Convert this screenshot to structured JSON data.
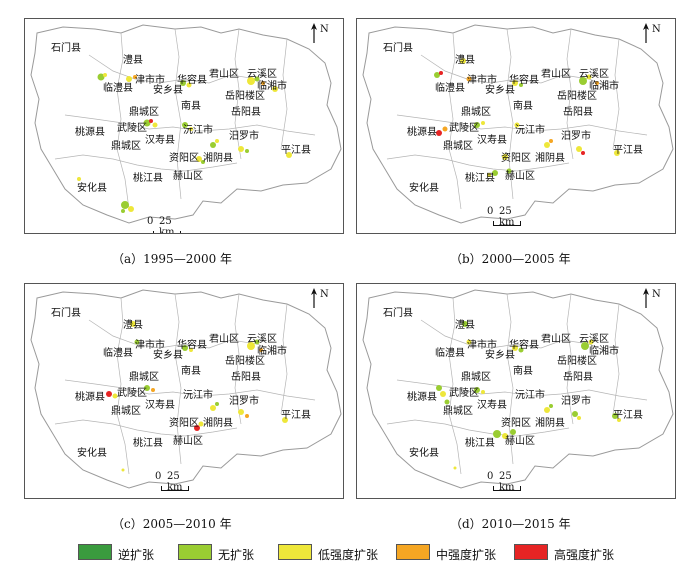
{
  "legend": {
    "items": [
      {
        "label": "逆扩张",
        "color": "#3a9b3e"
      },
      {
        "label": "无扩张",
        "color": "#9acd32"
      },
      {
        "label": "低强度扩张",
        "color": "#eee73a"
      },
      {
        "label": "中强度扩张",
        "color": "#f5a623"
      },
      {
        "label": "高强度扩张",
        "color": "#e62424"
      }
    ]
  },
  "map": {
    "north_label": "N",
    "scale_zero": "0",
    "scale_text": "25 km",
    "county_labels": [
      "石门县",
      "澧县",
      "津市市",
      "华容县",
      "君山区",
      "云溪区",
      "临湘市",
      "临澧县",
      "安乡县",
      "岳阳楼区",
      "南县",
      "岳阳县",
      "鼎城区",
      "武陵区",
      "桃源县",
      "鼎城区",
      "汉寿县",
      "沅江市",
      "汨罗市",
      "平江县",
      "资阳区",
      "湘阴县",
      "赫山区",
      "桃江县",
      "安化县"
    ]
  },
  "panels": [
    {
      "caption": "（a）1995—2000 年"
    },
    {
      "caption": "（b）2000—2005 年"
    },
    {
      "caption": "（c）2005—2010 年"
    },
    {
      "caption": "（d）2010—2015 年"
    }
  ]
}
